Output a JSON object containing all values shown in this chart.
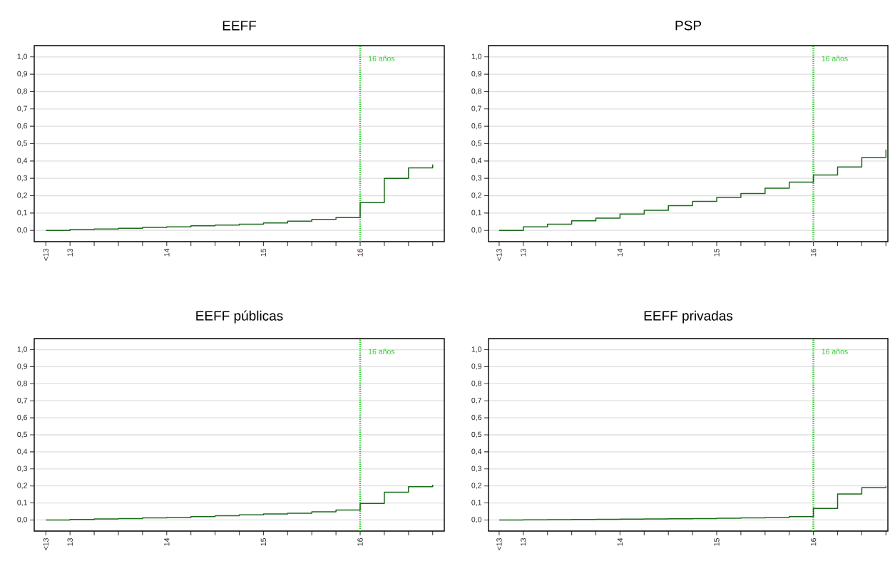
{
  "chart_data": [
    {
      "type": "step",
      "title": "EEFF",
      "x": [
        12.75,
        13,
        13.25,
        13.5,
        13.75,
        14,
        14.25,
        14.5,
        14.75,
        15,
        15.25,
        15.5,
        15.75,
        16,
        16.25,
        16.5,
        16.75
      ],
      "values": [
        0,
        0.005,
        0.008,
        0.012,
        0.017,
        0.02,
        0.026,
        0.031,
        0.036,
        0.043,
        0.053,
        0.063,
        0.074,
        0.16,
        0.3,
        0.36,
        0.38
      ],
      "color": "#1a6b1a",
      "xlim": [
        12.63,
        16.87
      ],
      "ylim": [
        -0.065,
        1.065
      ],
      "xticks": [
        {
          "value": 12.75,
          "label": "<13"
        },
        13,
        {
          "value": 13.25,
          "label": null
        },
        {
          "value": 13.5,
          "label": null
        },
        {
          "value": 13.75,
          "label": null
        },
        14,
        {
          "value": 14.25,
          "label": null
        },
        {
          "value": 14.5,
          "label": null
        },
        {
          "value": 14.75,
          "label": null
        },
        15,
        {
          "value": 15.25,
          "label": null
        },
        {
          "value": 15.5,
          "label": null
        },
        {
          "value": 15.75,
          "label": null
        },
        16,
        {
          "value": 16.25,
          "label": null
        },
        {
          "value": 16.5,
          "label": null
        },
        {
          "value": 16.75,
          "label": null
        }
      ],
      "yticks": [
        {
          "value": 0,
          "label": "0,0"
        },
        {
          "value": 0.1,
          "label": "0,1"
        },
        {
          "value": 0.2,
          "label": "0,2"
        },
        {
          "value": 0.3,
          "label": "0,3"
        },
        {
          "value": 0.4,
          "label": "0,4"
        },
        {
          "value": 0.5,
          "label": "0,5"
        },
        {
          "value": 0.6,
          "label": "0,6"
        },
        {
          "value": 0.7,
          "label": "0,7"
        },
        {
          "value": 0.8,
          "label": "0,8"
        },
        {
          "value": 0.9,
          "label": "0,9"
        },
        {
          "value": 1,
          "label": "1,0"
        }
      ],
      "grid": "y",
      "ref_lines": [
        {
          "axis": "x",
          "value": 16,
          "label": "16 años",
          "color": "#33cc33",
          "line_style": "dotted"
        }
      ]
    },
    {
      "type": "step",
      "title": "PSP",
      "x": [
        12.75,
        13,
        13.25,
        13.5,
        13.75,
        14,
        14.25,
        14.5,
        14.75,
        15,
        15.25,
        15.5,
        15.75,
        16,
        16.25,
        16.5,
        16.75
      ],
      "values": [
        0,
        0.02,
        0.036,
        0.055,
        0.071,
        0.094,
        0.116,
        0.142,
        0.167,
        0.19,
        0.212,
        0.243,
        0.278,
        0.319,
        0.365,
        0.42,
        0.466
      ],
      "color": "#1a6b1a",
      "xlim": [
        12.64,
        16.77
      ],
      "ylim": [
        -0.065,
        1.065
      ],
      "xticks": [
        {
          "value": 12.75,
          "label": "<13"
        },
        13,
        {
          "value": 13.25,
          "label": null
        },
        {
          "value": 13.5,
          "label": null
        },
        {
          "value": 13.75,
          "label": null
        },
        14,
        {
          "value": 14.25,
          "label": null
        },
        {
          "value": 14.5,
          "label": null
        },
        {
          "value": 14.75,
          "label": null
        },
        15,
        {
          "value": 15.25,
          "label": null
        },
        {
          "value": 15.5,
          "label": null
        },
        {
          "value": 15.75,
          "label": null
        },
        16,
        {
          "value": 16.25,
          "label": null
        },
        {
          "value": 16.5,
          "label": null
        },
        {
          "value": 16.75,
          "label": null
        }
      ],
      "yticks": [
        {
          "value": 0,
          "label": "0,0"
        },
        {
          "value": 0.1,
          "label": "0,1"
        },
        {
          "value": 0.2,
          "label": "0,2"
        },
        {
          "value": 0.3,
          "label": "0,3"
        },
        {
          "value": 0.4,
          "label": "0,4"
        },
        {
          "value": 0.5,
          "label": "0,5"
        },
        {
          "value": 0.6,
          "label": "0,6"
        },
        {
          "value": 0.7,
          "label": "0,7"
        },
        {
          "value": 0.8,
          "label": "0,8"
        },
        {
          "value": 0.9,
          "label": "0,9"
        },
        {
          "value": 1,
          "label": "1,0"
        }
      ],
      "grid": "y",
      "ref_lines": [
        {
          "axis": "x",
          "value": 16,
          "label": "16 años",
          "color": "#33cc33",
          "line_style": "dotted"
        }
      ]
    },
    {
      "type": "step",
      "title": "EEFF públicas",
      "x": [
        12.75,
        13,
        13.25,
        13.5,
        13.75,
        14,
        14.25,
        14.5,
        14.75,
        15,
        15.25,
        15.5,
        15.75,
        16,
        16.25,
        16.5,
        16.75
      ],
      "values": [
        0,
        0.003,
        0.006,
        0.008,
        0.012,
        0.015,
        0.02,
        0.025,
        0.03,
        0.035,
        0.04,
        0.048,
        0.058,
        0.097,
        0.163,
        0.196,
        0.207
      ],
      "color": "#1a6b1a",
      "xlim": [
        12.63,
        16.87
      ],
      "ylim": [
        -0.065,
        1.065
      ],
      "xticks": [
        {
          "value": 12.75,
          "label": "<13"
        },
        13,
        {
          "value": 13.25,
          "label": null
        },
        {
          "value": 13.5,
          "label": null
        },
        {
          "value": 13.75,
          "label": null
        },
        14,
        {
          "value": 14.25,
          "label": null
        },
        {
          "value": 14.5,
          "label": null
        },
        {
          "value": 14.75,
          "label": null
        },
        15,
        {
          "value": 15.25,
          "label": null
        },
        {
          "value": 15.5,
          "label": null
        },
        {
          "value": 15.75,
          "label": null
        },
        16,
        {
          "value": 16.25,
          "label": null
        },
        {
          "value": 16.5,
          "label": null
        },
        {
          "value": 16.75,
          "label": null
        }
      ],
      "yticks": [
        {
          "value": 0,
          "label": "0,0"
        },
        {
          "value": 0.1,
          "label": "0,1"
        },
        {
          "value": 0.2,
          "label": "0,2"
        },
        {
          "value": 0.3,
          "label": "0,3"
        },
        {
          "value": 0.4,
          "label": "0,4"
        },
        {
          "value": 0.5,
          "label": "0,5"
        },
        {
          "value": 0.6,
          "label": "0,6"
        },
        {
          "value": 0.7,
          "label": "0,7"
        },
        {
          "value": 0.8,
          "label": "0,8"
        },
        {
          "value": 0.9,
          "label": "0,9"
        },
        {
          "value": 1,
          "label": "1,0"
        }
      ],
      "grid": "y",
      "ref_lines": [
        {
          "axis": "x",
          "value": 16,
          "label": "16 años",
          "color": "#33cc33",
          "line_style": "dotted"
        }
      ]
    },
    {
      "type": "step",
      "title": "EEFF privadas",
      "x": [
        12.75,
        13,
        13.25,
        13.5,
        13.75,
        14,
        14.25,
        14.5,
        14.75,
        15,
        15.25,
        15.5,
        15.75,
        16,
        16.25,
        16.5,
        16.75
      ],
      "values": [
        0,
        0.001,
        0.002,
        0.003,
        0.004,
        0.005,
        0.006,
        0.007,
        0.008,
        0.01,
        0.012,
        0.015,
        0.02,
        0.068,
        0.153,
        0.19,
        0.198
      ],
      "color": "#1a6b1a",
      "xlim": [
        12.64,
        16.77
      ],
      "ylim": [
        -0.065,
        1.065
      ],
      "xticks": [
        {
          "value": 12.75,
          "label": "<13"
        },
        13,
        {
          "value": 13.25,
          "label": null
        },
        {
          "value": 13.5,
          "label": null
        },
        {
          "value": 13.75,
          "label": null
        },
        14,
        {
          "value": 14.25,
          "label": null
        },
        {
          "value": 14.5,
          "label": null
        },
        {
          "value": 14.75,
          "label": null
        },
        15,
        {
          "value": 15.25,
          "label": null
        },
        {
          "value": 15.5,
          "label": null
        },
        {
          "value": 15.75,
          "label": null
        },
        16,
        {
          "value": 16.25,
          "label": null
        },
        {
          "value": 16.5,
          "label": null
        },
        {
          "value": 16.75,
          "label": null
        }
      ],
      "yticks": [
        {
          "value": 0,
          "label": "0,0"
        },
        {
          "value": 0.1,
          "label": "0,1"
        },
        {
          "value": 0.2,
          "label": "0,2"
        },
        {
          "value": 0.3,
          "label": "0,3"
        },
        {
          "value": 0.4,
          "label": "0,4"
        },
        {
          "value": 0.5,
          "label": "0,5"
        },
        {
          "value": 0.6,
          "label": "0,6"
        },
        {
          "value": 0.7,
          "label": "0,7"
        },
        {
          "value": 0.8,
          "label": "0,8"
        },
        {
          "value": 0.9,
          "label": "0,9"
        },
        {
          "value": 1,
          "label": "1,0"
        }
      ],
      "grid": "y",
      "ref_lines": [
        {
          "axis": "x",
          "value": 16,
          "label": "16 años",
          "color": "#33cc33",
          "line_style": "dotted"
        }
      ]
    }
  ]
}
